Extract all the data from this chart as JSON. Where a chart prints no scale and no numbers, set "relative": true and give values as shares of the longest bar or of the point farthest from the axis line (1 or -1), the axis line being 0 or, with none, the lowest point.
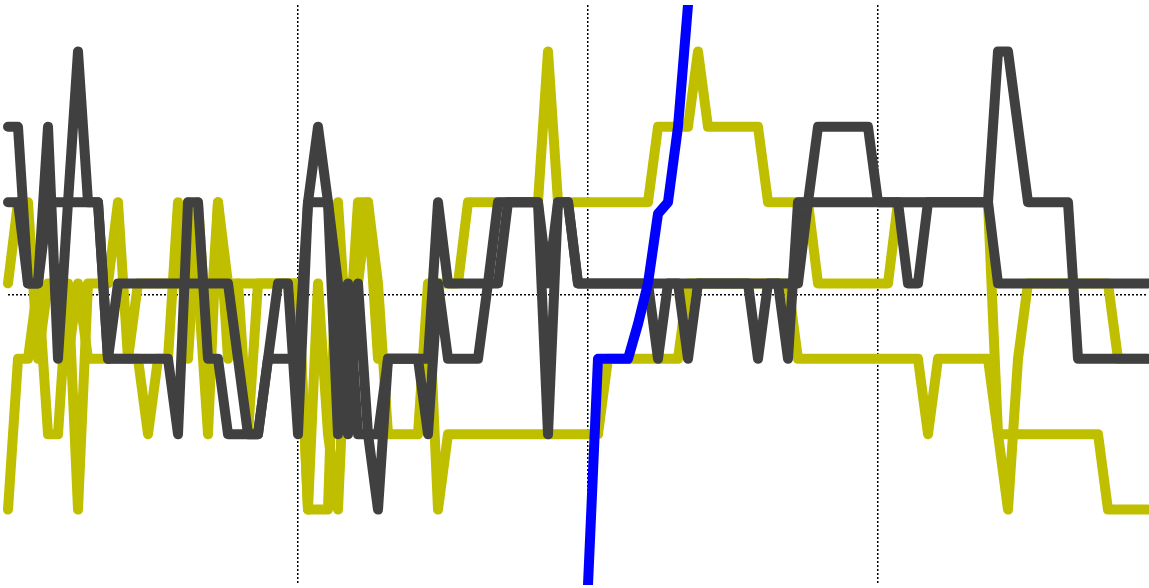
{
  "chart_data": {
    "type": "line",
    "relative": true,
    "grid": true,
    "categories": [
      null,
      null,
      null,
      null,
      null,
      null,
      null,
      null,
      null,
      null,
      null,
      null,
      null,
      null,
      null,
      null,
      null,
      null,
      null,
      null,
      null,
      null,
      null,
      null,
      null,
      null,
      null,
      null,
      null,
      null,
      null,
      null,
      null,
      null,
      null,
      null,
      null,
      null,
      null,
      null,
      null,
      null,
      null,
      null,
      null,
      null,
      null,
      null,
      null,
      null,
      null,
      null,
      null,
      null,
      null,
      null,
      null,
      null,
      null,
      null,
      null,
      null,
      null,
      null,
      null,
      null,
      null,
      null,
      null,
      null,
      null,
      null,
      null,
      null,
      null,
      null,
      null,
      null,
      null,
      null,
      null,
      null,
      null,
      null,
      null,
      null,
      null,
      null,
      null,
      null,
      null,
      null,
      null,
      null,
      null,
      null,
      null,
      null,
      null,
      null,
      null,
      null,
      null,
      null,
      null,
      null,
      null,
      null,
      null,
      null,
      null,
      null,
      null,
      null,
      null
    ],
    "series": [
      {
        "color": "#bfbf00",
        "values": [
          0.13,
          0.39,
          0.39,
          0.52,
          0.26,
          0.26,
          0.52,
          0.13,
          0.52,
          0.52,
          0.52,
          0.66,
          0.39,
          0.52,
          0.52,
          0.52,
          0.52,
          0.52,
          0.66,
          0.52,
          0.26,
          0.66,
          0.52,
          0.52,
          0.52,
          0.52,
          0.52,
          0.52,
          0.52,
          0.52,
          0.13,
          0.13,
          0.13,
          0.66,
          0.39,
          0.66,
          0.66,
          0.52,
          0.26,
          0.26,
          0.26,
          0.26,
          0.52,
          0.13,
          0.26,
          0.26,
          0.26,
          0.26,
          0.26,
          0.26,
          0.26,
          0.26,
          0.26,
          0.26,
          0.26,
          0.26,
          0.26,
          0.26,
          0.26,
          0.26,
          0.39,
          0.39,
          0.39,
          0.39,
          0.39,
          0.39,
          0.39,
          0.39,
          0.52,
          0.52,
          0.52,
          0.52,
          0.52,
          0.52,
          0.52,
          0.52,
          0.52,
          0.52,
          0.52,
          0.39,
          0.39,
          0.39,
          0.39,
          0.39,
          0.39,
          0.39,
          0.39,
          0.39,
          0.39,
          0.39,
          0.39,
          0.39,
          0.26,
          0.39,
          0.39,
          0.39,
          0.39,
          0.39,
          0.39,
          0.26,
          0.13,
          0.39,
          0.52,
          0.52,
          0.52,
          0.52,
          0.52,
          0.52,
          0.52,
          0.52,
          0.52,
          0.39,
          0.39,
          0.39,
          0.39
        ]
      },
      {
        "color": "#bfbf00",
        "values": [
          0.52,
          0.66,
          0.66,
          0.39,
          0.52,
          0.52,
          0.39,
          0.52,
          0.39,
          0.39,
          0.39,
          0.39,
          0.39,
          0.39,
          0.26,
          0.39,
          0.39,
          0.66,
          0.39,
          0.66,
          0.39,
          0.66,
          0.39,
          0.52,
          0.26,
          0.52,
          0.52,
          0.52,
          0.52,
          0.52,
          0.13,
          0.52,
          0.26,
          0.13,
          0.52,
          0.52,
          0.66,
          0.39,
          0.39,
          0.39,
          0.39,
          0.39,
          0.39,
          0.52,
          0.52,
          0.52,
          0.66,
          0.66,
          0.66,
          0.66,
          0.66,
          0.66,
          0.66,
          0.66,
          0.92,
          0.66,
          0.66,
          0.66,
          0.66,
          0.66,
          0.66,
          0.66,
          0.66,
          0.66,
          0.66,
          0.79,
          0.79,
          0.79,
          0.79,
          0.92,
          0.79,
          0.79,
          0.79,
          0.79,
          0.79,
          0.79,
          0.66,
          0.66,
          0.66,
          0.66,
          0.66,
          0.52,
          0.52,
          0.52,
          0.52,
          0.52,
          0.52,
          0.52,
          0.52,
          0.66,
          0.66,
          0.66,
          0.66,
          0.66,
          0.66,
          0.66,
          0.66,
          0.66,
          0.66,
          0.26,
          0.26,
          0.26,
          0.26,
          0.26,
          0.26,
          0.26,
          0.26,
          0.26,
          0.26,
          0.26,
          0.13,
          0.13,
          0.13,
          0.13,
          0.13
        ]
      },
      {
        "color": "#404040",
        "values": [
          0.79,
          0.79,
          0.52,
          0.52,
          0.79,
          0.39,
          0.66,
          0.92,
          0.66,
          0.66,
          0.39,
          0.39,
          0.39,
          0.39,
          0.39,
          0.39,
          0.39,
          0.26,
          0.66,
          0.66,
          0.39,
          0.39,
          0.26,
          0.26,
          0.26,
          0.26,
          0.39,
          0.39,
          0.39,
          0.39,
          0.66,
          0.79,
          0.66,
          0.26,
          0.52,
          0.26,
          0.26,
          0.13,
          0.39,
          0.39,
          0.39,
          0.39,
          0.39,
          0.66,
          0.52,
          0.52,
          0.52,
          0.52,
          0.52,
          0.66,
          0.66,
          0.66,
          0.66,
          0.66,
          0.26,
          0.66,
          0.66,
          0.52,
          0.52,
          0.52,
          0.52,
          0.52,
          0.52,
          0.52,
          0.52,
          0.39,
          0.52,
          0.52,
          0.52,
          0.52,
          0.52,
          0.52,
          0.52,
          0.52,
          0.52,
          0.39,
          0.52,
          0.52,
          0.39,
          0.66,
          0.66,
          0.79,
          0.79,
          0.79,
          0.79,
          0.79,
          0.79,
          0.66,
          0.66,
          0.66,
          0.66,
          0.66,
          0.66,
          0.66,
          0.66,
          0.66,
          0.66,
          0.66,
          0.66,
          0.92,
          0.92,
          0.79,
          0.66,
          0.66,
          0.66,
          0.66,
          0.66,
          0.39,
          0.39,
          0.39,
          0.39,
          0.39,
          0.39,
          0.39,
          0.39
        ]
      },
      {
        "color": "#404040",
        "values": [
          0.66,
          0.66,
          0.52,
          0.52,
          0.66,
          0.66,
          0.66,
          0.66,
          0.66,
          0.66,
          0.39,
          0.52,
          0.52,
          0.52,
          0.52,
          0.52,
          0.52,
          0.52,
          0.52,
          0.52,
          0.52,
          0.52,
          0.52,
          0.39,
          0.26,
          0.26,
          0.39,
          0.52,
          0.52,
          0.26,
          0.66,
          0.66,
          0.66,
          0.52,
          0.26,
          0.52,
          0.26,
          0.26,
          0.39,
          0.39,
          0.39,
          0.39,
          0.26,
          0.52,
          0.39,
          0.39,
          0.39,
          0.39,
          0.52,
          0.52,
          0.66,
          0.66,
          0.66,
          0.66,
          0.52,
          0.66,
          0.66,
          0.52,
          0.52,
          0.52,
          0.52,
          0.52,
          0.52,
          0.52,
          0.52,
          0.52,
          0.52,
          0.52,
          0.39,
          0.52,
          0.52,
          0.52,
          0.52,
          0.52,
          0.52,
          0.52,
          0.52,
          0.52,
          0.52,
          0.52,
          0.66,
          0.66,
          0.66,
          0.66,
          0.66,
          0.66,
          0.66,
          0.66,
          0.66,
          0.66,
          0.52,
          0.52,
          0.66,
          0.66,
          0.66,
          0.66,
          0.66,
          0.66,
          0.66,
          0.52,
          0.52,
          0.52,
          0.52,
          0.52,
          0.52,
          0.52,
          0.52,
          0.52,
          0.52,
          0.52,
          0.52,
          0.52,
          0.52,
          0.52,
          0.52
        ]
      },
      {
        "color": "#0000ff",
        "values": [
          null,
          null,
          null,
          null,
          null,
          null,
          null,
          null,
          null,
          null,
          null,
          null,
          null,
          null,
          null,
          null,
          null,
          null,
          null,
          null,
          null,
          null,
          null,
          null,
          null,
          null,
          null,
          null,
          null,
          null,
          null,
          null,
          null,
          null,
          null,
          null,
          null,
          null,
          null,
          null,
          null,
          null,
          null,
          null,
          null,
          null,
          null,
          null,
          null,
          null,
          null,
          null,
          null,
          null,
          null,
          null,
          null,
          null,
          0,
          0.39,
          0.39,
          0.39,
          0.39,
          0.45,
          0.52,
          0.64,
          0.66,
          0.79,
          1,
          null,
          null,
          null,
          null,
          null,
          null,
          null,
          null,
          null,
          null,
          null,
          null,
          null,
          null,
          null,
          null,
          null,
          null,
          null,
          null,
          null,
          null,
          null,
          null,
          null,
          null,
          null,
          null,
          null,
          null,
          null,
          null,
          null,
          null,
          null,
          null,
          null,
          null,
          null,
          null,
          null,
          null,
          null,
          null,
          null,
          null
        ]
      }
    ]
  }
}
